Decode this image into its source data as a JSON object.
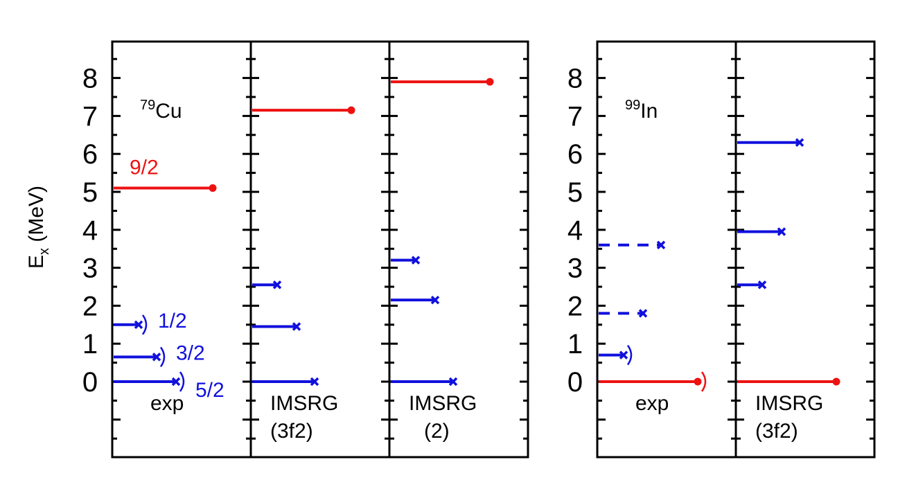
{
  "chart_data": {
    "type": "level-scheme",
    "ylabel": "E",
    "ylabel_sub": "x",
    "ylabel_unit": "(MeV)",
    "ylim": [
      -2.2,
      9.0
    ],
    "yticks": [
      "0",
      "1",
      "2",
      "3",
      "4",
      "5",
      "6",
      "7",
      "8"
    ],
    "colors": {
      "positive_parity": "#ee1111",
      "negative_parity": "#1010dd",
      "frame": "#000000"
    },
    "groups": [
      {
        "nucleus_mass": "79",
        "nucleus_symbol": "Cu",
        "panels": [
          {
            "label_lines": [
              "exp"
            ],
            "levels": [
              {
                "energy": 0.0,
                "color": "negative_parity",
                "marker": "x",
                "tentative": true,
                "dashed": false,
                "spin": "5/2"
              },
              {
                "energy": 0.65,
                "color": "negative_parity",
                "marker": "x",
                "tentative": true,
                "dashed": false,
                "spin": "3/2"
              },
              {
                "energy": 1.5,
                "color": "negative_parity",
                "marker": "x",
                "tentative": true,
                "dashed": false,
                "spin": "1/2"
              },
              {
                "energy": 5.1,
                "color": "positive_parity",
                "marker": "dot",
                "tentative": false,
                "dashed": false,
                "spin": "9/2"
              }
            ]
          },
          {
            "label_lines": [
              "IMSRG",
              "(3f2)"
            ],
            "levels": [
              {
                "energy": 0.0,
                "color": "negative_parity",
                "marker": "x",
                "tentative": false,
                "dashed": false,
                "spin": ""
              },
              {
                "energy": 1.45,
                "color": "negative_parity",
                "marker": "x",
                "tentative": false,
                "dashed": false,
                "spin": ""
              },
              {
                "energy": 2.55,
                "color": "negative_parity",
                "marker": "x",
                "tentative": false,
                "dashed": false,
                "spin": ""
              },
              {
                "energy": 7.15,
                "color": "positive_parity",
                "marker": "dot",
                "tentative": false,
                "dashed": false,
                "spin": ""
              }
            ]
          },
          {
            "label_lines": [
              "IMSRG",
              "(2)"
            ],
            "levels": [
              {
                "energy": 0.0,
                "color": "negative_parity",
                "marker": "x",
                "tentative": false,
                "dashed": false,
                "spin": ""
              },
              {
                "energy": 2.15,
                "color": "negative_parity",
                "marker": "x",
                "tentative": false,
                "dashed": false,
                "spin": ""
              },
              {
                "energy": 3.2,
                "color": "negative_parity",
                "marker": "x",
                "tentative": false,
                "dashed": false,
                "spin": ""
              },
              {
                "energy": 7.9,
                "color": "positive_parity",
                "marker": "dot",
                "tentative": false,
                "dashed": false,
                "spin": ""
              }
            ]
          }
        ]
      },
      {
        "nucleus_mass": "99",
        "nucleus_symbol": "In",
        "panels": [
          {
            "label_lines": [
              "exp"
            ],
            "levels": [
              {
                "energy": 0.0,
                "color": "positive_parity",
                "marker": "dot",
                "tentative": true,
                "dashed": false,
                "spin": ""
              },
              {
                "energy": 0.7,
                "color": "negative_parity",
                "marker": "x",
                "tentative": true,
                "dashed": false,
                "spin": ""
              },
              {
                "energy": 1.8,
                "color": "negative_parity",
                "marker": "x",
                "tentative": false,
                "dashed": true,
                "spin": ""
              },
              {
                "energy": 3.6,
                "color": "negative_parity",
                "marker": "x",
                "tentative": false,
                "dashed": true,
                "spin": ""
              }
            ]
          },
          {
            "label_lines": [
              "IMSRG",
              "(3f2)"
            ],
            "levels": [
              {
                "energy": 0.0,
                "color": "positive_parity",
                "marker": "dot",
                "tentative": false,
                "dashed": false,
                "spin": ""
              },
              {
                "energy": 2.55,
                "color": "negative_parity",
                "marker": "x",
                "tentative": false,
                "dashed": false,
                "spin": ""
              },
              {
                "energy": 3.95,
                "color": "negative_parity",
                "marker": "x",
                "tentative": false,
                "dashed": false,
                "spin": ""
              },
              {
                "energy": 6.3,
                "color": "negative_parity",
                "marker": "x",
                "tentative": false,
                "dashed": false,
                "spin": ""
              }
            ]
          }
        ]
      }
    ]
  }
}
